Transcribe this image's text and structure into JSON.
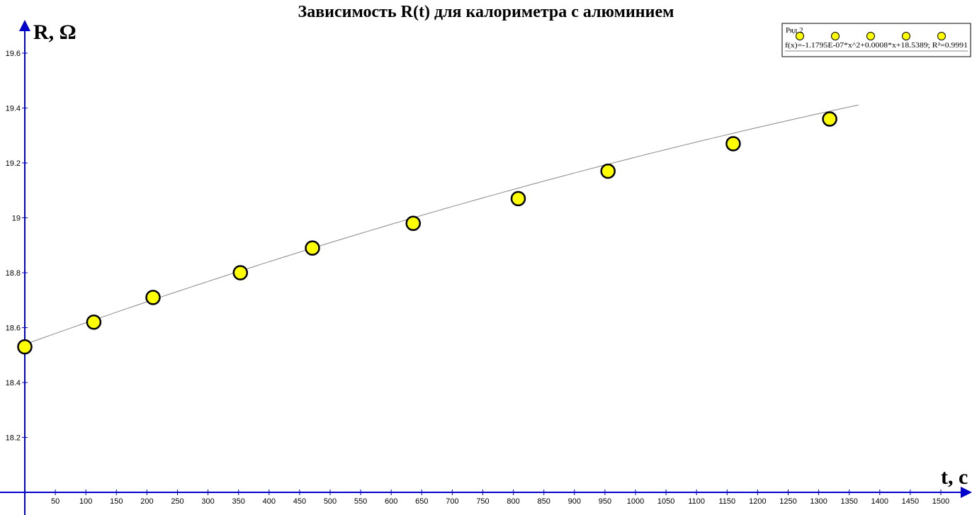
{
  "chart_data": {
    "type": "scatter",
    "title": "Зависимость R(t) для калориметра с алюминием",
    "xlabel": "t, c",
    "ylabel": "R, Ω",
    "xlim": [
      0,
      1540
    ],
    "ylim": [
      18.0,
      19.75
    ],
    "x_ticks": [
      50,
      100,
      150,
      200,
      250,
      300,
      350,
      400,
      450,
      500,
      550,
      600,
      650,
      700,
      750,
      800,
      850,
      900,
      950,
      1000,
      1050,
      1100,
      1150,
      1200,
      1250,
      1300,
      1350,
      1400,
      1450,
      1500
    ],
    "y_ticks": [
      18.2,
      18.4,
      18.6,
      18.8,
      19,
      19.2,
      19.4,
      19.6
    ],
    "y_tick_labels": [
      "18.2",
      "18.4",
      "18.6",
      "18.8",
      "19",
      "19.2",
      "19.4",
      "19.6"
    ],
    "series": [
      {
        "name": "Ряд 2",
        "x": [
          0,
          113,
          210,
          353,
          471,
          636,
          808,
          955,
          1160,
          1318
        ],
        "y": [
          18.53,
          18.62,
          18.71,
          18.8,
          18.89,
          18.98,
          19.07,
          19.17,
          19.27,
          19.36
        ]
      }
    ],
    "fit": {
      "label": "f(x)=-1.1795E-07*x^2+0.0008*x+18.5389; R²=0.9991",
      "a": -1.1795e-07,
      "b": 0.0008,
      "c": 18.5389,
      "x_range": [
        0,
        1365
      ]
    },
    "legend_placement": "top-right",
    "grid": false,
    "colors": {
      "point_fill": "#ffff00",
      "point_stroke": "#000000",
      "axis": "#0000cc",
      "fit_line": "#888888"
    }
  }
}
